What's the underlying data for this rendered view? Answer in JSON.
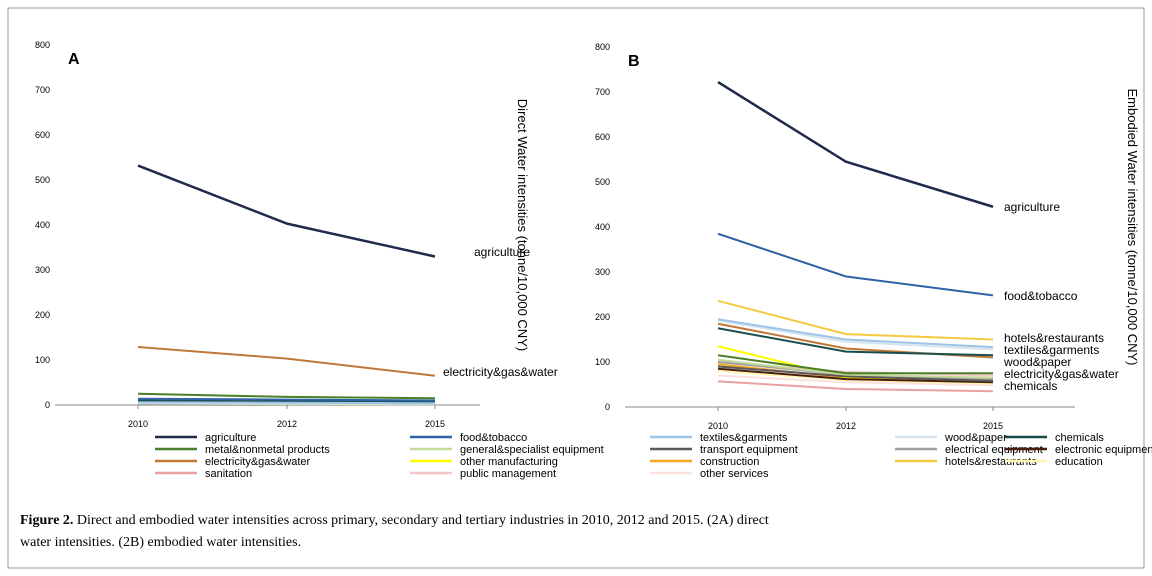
{
  "chart_data": [
    {
      "type": "line",
      "panel_label": "A",
      "y_label": "Direct Water intensities (tonne/10,000 CNY)",
      "categories": [
        "2010",
        "2012",
        "2015"
      ],
      "ylim": [
        0,
        800
      ],
      "yticks": [
        0,
        100,
        200,
        300,
        400,
        500,
        600,
        700,
        800
      ],
      "series": [
        {
          "values": [
            532,
            403,
            330
          ]
        },
        {
          "values": [
            14,
            12,
            10
          ]
        },
        {
          "values": [
            6,
            5,
            4
          ]
        },
        {
          "values": [
            4,
            3,
            3
          ]
        },
        {
          "values": [
            10,
            8,
            7
          ]
        },
        {
          "values": [
            25,
            18,
            15
          ]
        },
        {
          "values": [
            3,
            2,
            2
          ]
        },
        {
          "values": [
            2,
            2,
            2
          ]
        },
        {
          "values": [
            2,
            2,
            1
          ]
        },
        {
          "values": [
            2,
            1,
            1
          ]
        },
        {
          "values": [
            129,
            103,
            65
          ]
        },
        {
          "values": [
            5,
            4,
            3
          ]
        },
        {
          "values": [
            3,
            2,
            2
          ]
        },
        {
          "values": [
            12,
            9,
            8
          ]
        },
        {
          "values": [
            2,
            2,
            1
          ]
        },
        {
          "values": [
            8,
            6,
            5
          ]
        },
        {
          "values": [
            3,
            2,
            2
          ]
        },
        {
          "values": [
            4,
            3,
            3
          ]
        }
      ],
      "end_labels": [
        "agriculture",
        "electricity&gas&water"
      ]
    },
    {
      "type": "line",
      "panel_label": "B",
      "y_label": "Embodied Water intensities (tonne/10,000 CNY)",
      "categories": [
        "2010",
        "2012",
        "2015"
      ],
      "ylim": [
        0,
        800
      ],
      "yticks": [
        0,
        100,
        200,
        300,
        400,
        500,
        600,
        700,
        800
      ],
      "series": [
        {
          "values": [
            722,
            545,
            445
          ]
        },
        {
          "values": [
            385,
            290,
            248
          ]
        },
        {
          "values": [
            195,
            150,
            133
          ]
        },
        {
          "values": [
            192,
            145,
            128
          ]
        },
        {
          "values": [
            175,
            123,
            115
          ]
        },
        {
          "values": [
            115,
            75,
            75
          ]
        },
        {
          "values": [
            105,
            72,
            65
          ]
        },
        {
          "values": [
            90,
            68,
            58
          ]
        },
        {
          "values": [
            100,
            72,
            62
          ]
        },
        {
          "values": [
            85,
            62,
            55
          ]
        },
        {
          "values": [
            185,
            130,
            110
          ]
        },
        {
          "values": [
            135,
            65,
            60
          ]
        },
        {
          "values": [
            95,
            65,
            62
          ]
        },
        {
          "values": [
            236,
            162,
            150
          ]
        },
        {
          "values": [
            80,
            60,
            52
          ]
        },
        {
          "values": [
            57,
            40,
            35
          ]
        },
        {
          "values": [
            100,
            78,
            70
          ]
        },
        {
          "values": [
            70,
            55,
            48
          ]
        }
      ],
      "end_labels": [
        "agriculture",
        "food&tobacco",
        "hotels&restaurants",
        "textiles&garments",
        "wood&paper",
        "electricity&gas&water",
        "chemicals"
      ]
    }
  ],
  "legend": [
    {
      "name": "agriculture",
      "color": "#1f2a4d"
    },
    {
      "name": "food&tobacco",
      "color": "#2e63a8"
    },
    {
      "name": "textiles&garments",
      "color": "#9dc3e6"
    },
    {
      "name": "wood&paper",
      "color": "#d6e4f0"
    },
    {
      "name": "chemicals",
      "color": "#1a4d4d"
    },
    {
      "name": "metal&nonmetal products",
      "color": "#4a7f2a"
    },
    {
      "name": "general&specialist equipment",
      "color": "#c5d99a"
    },
    {
      "name": "transport equipment",
      "color": "#5a5a5a"
    },
    {
      "name": "electrical equipment",
      "color": "#a0a0a0"
    },
    {
      "name": "electronic equipment",
      "color": "#4a1e0e"
    },
    {
      "name": "electricity&gas&water",
      "color": "#c07838"
    },
    {
      "name": "other manufacturing",
      "color": "#ffff00"
    },
    {
      "name": "construction",
      "color": "#f5a623"
    },
    {
      "name": "hotels&restaurants",
      "color": "#f5c842"
    },
    {
      "name": "education",
      "color": "#fff5b0"
    },
    {
      "name": "sanitation",
      "color": "#e8a0a0"
    },
    {
      "name": "public management",
      "color": "#f5c6c6"
    },
    {
      "name": "other services",
      "color": "#fbe0e0"
    }
  ],
  "caption": {
    "label": "Figure 2.",
    "lines": [
      "Direct and embodied water intensities across primary, secondary and tertiary industries in 2010, 2012 and 2015. (2A) direct",
      "water intensities. (2B) embodied water intensities."
    ]
  }
}
